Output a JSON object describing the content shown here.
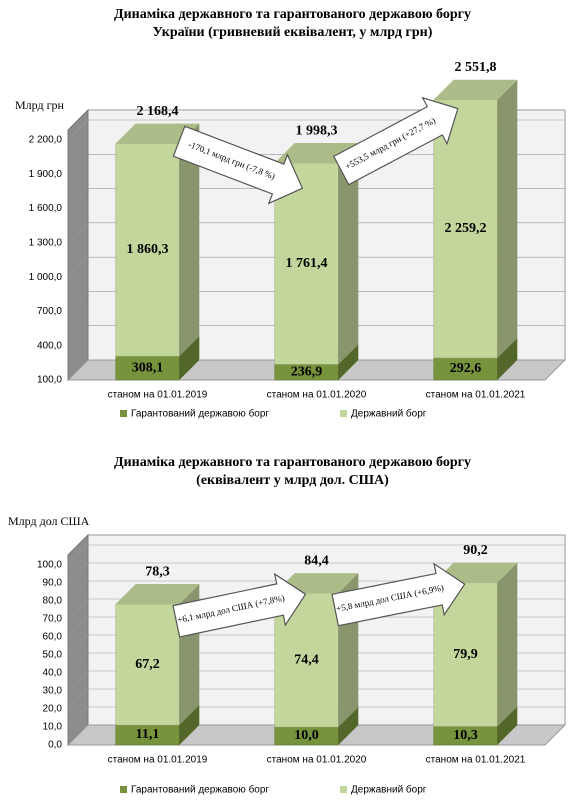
{
  "chart_data": [
    {
      "type": "bar3d-stacked",
      "title": "Динаміка державного та гарантованого державою боргу України (гривневий еквівалент, у млрд грн)",
      "y_label": "Млрд грн",
      "categories": [
        "станом на 01.01.2019",
        "станом на 01.01.2020",
        "станом на 01.01.2021"
      ],
      "series": [
        {
          "name": "Гарантований державою борг",
          "color": "#77933c",
          "values": [
            308.1,
            236.9,
            292.6
          ],
          "value_labels": [
            "308,1",
            "236,9",
            "292,6"
          ]
        },
        {
          "name": "Державний борг",
          "color": "#c3d69b",
          "values": [
            1860.3,
            1761.4,
            2259.2
          ],
          "value_labels": [
            "1 860,3",
            "1 761,4",
            "2 259,2"
          ]
        }
      ],
      "totals": {
        "values": [
          2168.4,
          1998.3,
          2551.8
        ],
        "value_labels": [
          "2 168,4",
          "1 998,3",
          "2 551,8"
        ]
      },
      "annotations": [
        "-170,1 млрд грн (-7,8 %)",
        "+553,5 млрд грн (+27,7 %)"
      ],
      "ylim": [
        100,
        2200
      ],
      "yticks": [
        {
          "value": 100,
          "label": "100,0"
        },
        {
          "value": 400,
          "label": "400,0"
        },
        {
          "value": 700,
          "label": "700,0"
        },
        {
          "value": 1000,
          "label": "1 000,0"
        },
        {
          "value": 1300,
          "label": "1 300,0"
        },
        {
          "value": 1600,
          "label": "1 600,0"
        },
        {
          "value": 1900,
          "label": "1 900,0"
        },
        {
          "value": 2200,
          "label": "2 200,0"
        }
      ],
      "grid": true
    },
    {
      "type": "bar3d-stacked",
      "title": "Динаміка державного та гарантованого державою боргу (еквівалент у млрд дол. США)",
      "y_label": "Млрд дол США",
      "categories": [
        "станом на 01.01.2019",
        "станом на 01.01.2020",
        "станом на 01.01.2021"
      ],
      "series": [
        {
          "name": "Гарантований державою борг",
          "color": "#77933c",
          "values": [
            11.1,
            10.0,
            10.3
          ],
          "value_labels": [
            "11,1",
            "10,0",
            "10,3"
          ]
        },
        {
          "name": "Державний борг",
          "color": "#c3d69b",
          "values": [
            67.2,
            74.4,
            79.9
          ],
          "value_labels": [
            "67,2",
            "74,4",
            "79,9"
          ]
        }
      ],
      "totals": {
        "values": [
          78.3,
          84.4,
          90.2
        ],
        "value_labels": [
          "78,3",
          "84,4",
          "90,2"
        ]
      },
      "annotations": [
        "+6,1 млрд дол США (+7,8%)",
        "+5,8 млрд дол США (+6,9%)"
      ],
      "ylim": [
        0,
        100
      ],
      "yticks": [
        {
          "value": 0,
          "label": "0,0"
        },
        {
          "value": 10,
          "label": "10,0"
        },
        {
          "value": 20,
          "label": "20,0"
        },
        {
          "value": 30,
          "label": "30,0"
        },
        {
          "value": 40,
          "label": "40,0"
        },
        {
          "value": 50,
          "label": "50,0"
        },
        {
          "value": 60,
          "label": "60,0"
        },
        {
          "value": 70,
          "label": "70,0"
        },
        {
          "value": 80,
          "label": "80,0"
        },
        {
          "value": 90,
          "label": "90,0"
        },
        {
          "value": 100,
          "label": "100,0"
        }
      ],
      "grid": true
    }
  ]
}
